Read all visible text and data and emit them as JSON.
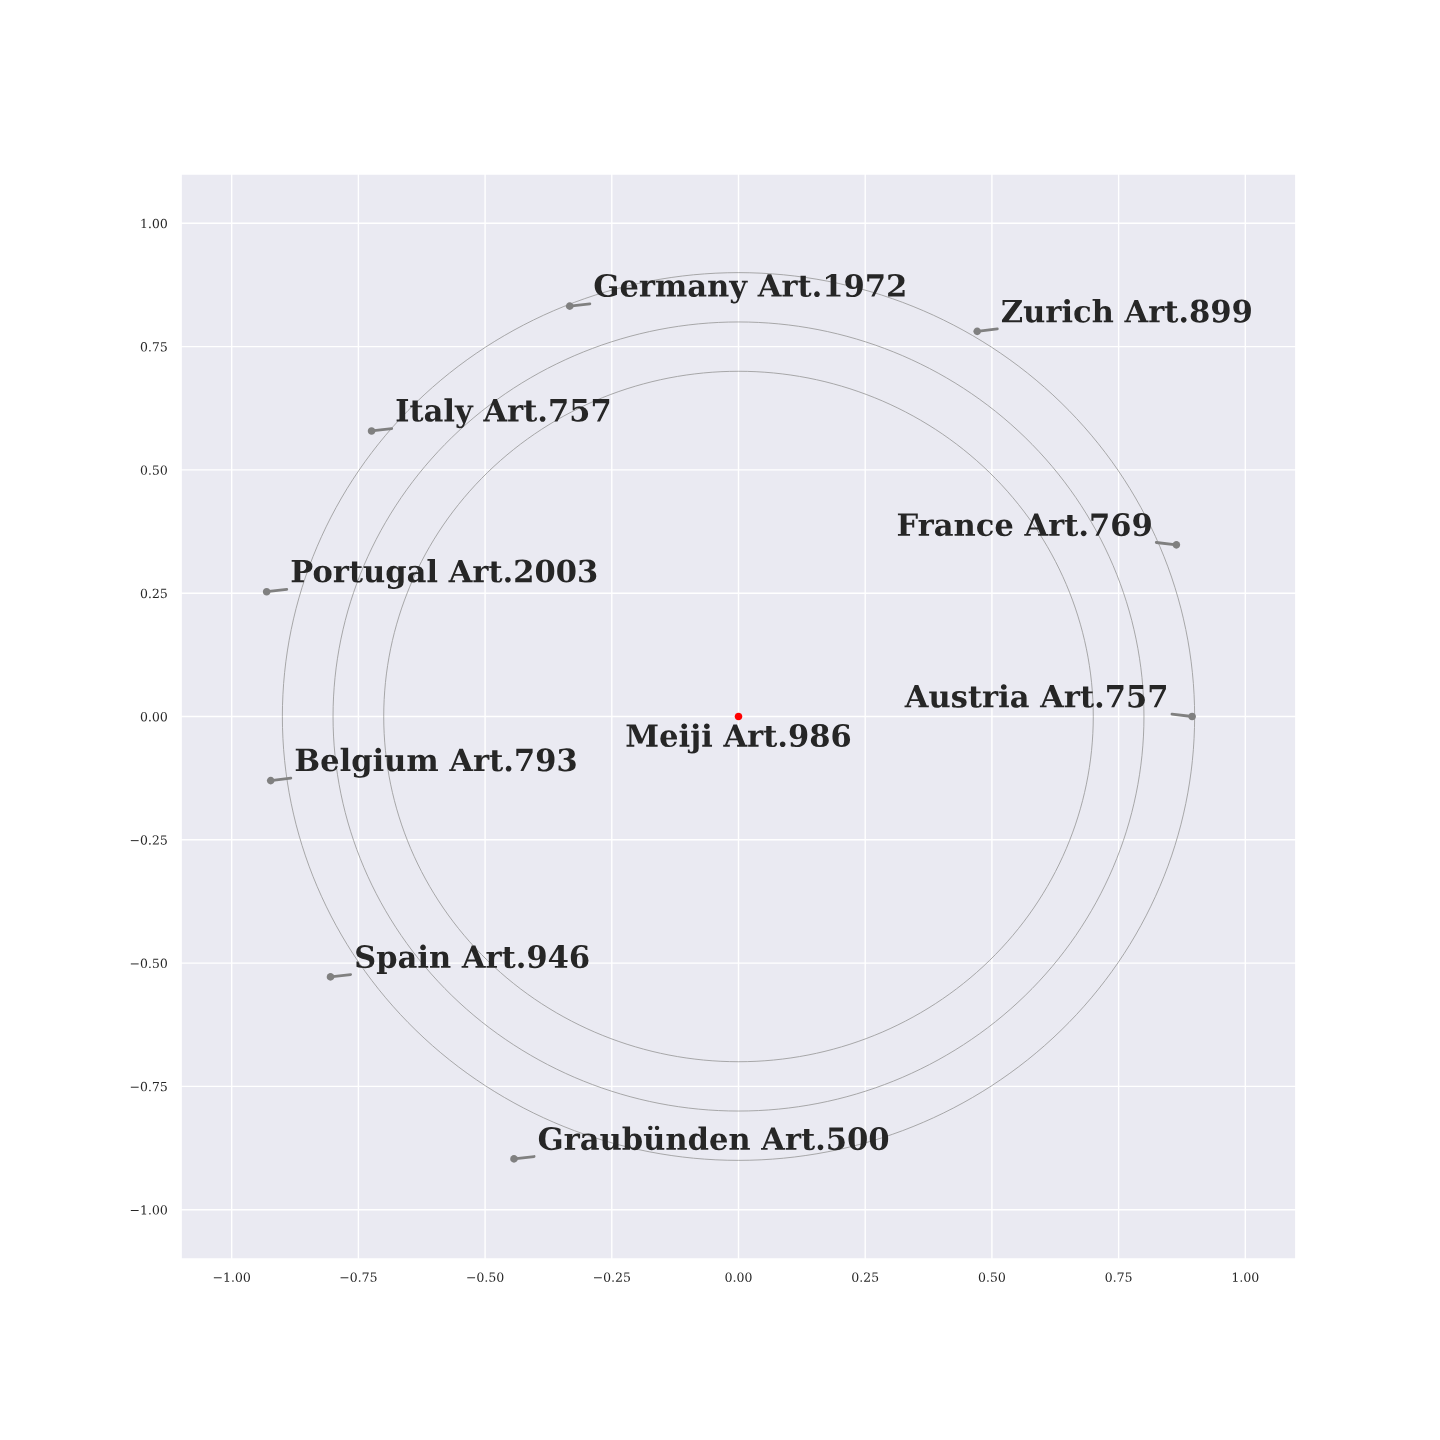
{
  "chart_data": {
    "type": "scatter",
    "xlim": [
      -1.1,
      1.1
    ],
    "ylim": [
      -1.1,
      1.1
    ],
    "xticks": [
      {
        "value": -1.0,
        "label": "−1.00"
      },
      {
        "value": -0.75,
        "label": "−0.75"
      },
      {
        "value": -0.5,
        "label": "−0.50"
      },
      {
        "value": -0.25,
        "label": "−0.25"
      },
      {
        "value": 0,
        "label": "0.00"
      },
      {
        "value": 0.25,
        "label": "0.25"
      },
      {
        "value": 0.5,
        "label": "0.50"
      },
      {
        "value": 0.75,
        "label": "0.75"
      },
      {
        "value": 1.0,
        "label": "1.00"
      }
    ],
    "yticks": [
      {
        "value": -1.0,
        "label": "−1.00"
      },
      {
        "value": -0.75,
        "label": "−0.75"
      },
      {
        "value": -0.5,
        "label": "−0.50"
      },
      {
        "value": -0.25,
        "label": "−0.25"
      },
      {
        "value": 0,
        "label": "0.00"
      },
      {
        "value": 0.25,
        "label": "0.25"
      },
      {
        "value": 0.5,
        "label": "0.50"
      },
      {
        "value": 0.75,
        "label": "0.75"
      },
      {
        "value": 1.0,
        "label": "1.00"
      }
    ],
    "grid": true,
    "legend": false,
    "series": [
      {
        "marker": "circle",
        "x": [
          -0.333,
          0.471,
          -0.724,
          0.864,
          -0.931,
          0.895,
          0,
          -0.923,
          -0.805,
          -0.443
        ],
        "values": [
          0.832,
          0.781,
          0.579,
          0.348,
          0.253,
          0,
          0,
          -0.13,
          -0.528,
          -0.897
        ],
        "colors": [
          "#808080",
          "#808080",
          "#808080",
          "#808080",
          "#808080",
          "#808080",
          "#ff0000",
          "#808080",
          "#808080",
          "#808080"
        ]
      }
    ],
    "annotations": [
      {
        "text": "Germany Art.1972",
        "x": -0.333,
        "y": 0.832
      },
      {
        "text": "Zurich Art.899",
        "x": 0.471,
        "y": 0.781
      },
      {
        "text": "Italy Art.757",
        "x": -0.724,
        "y": 0.579
      },
      {
        "text": "France Art.769",
        "x": 0.864,
        "y": 0.348
      },
      {
        "text": "Portugal Art.2003",
        "x": -0.931,
        "y": 0.253
      },
      {
        "text": "Austria Art.757",
        "x": 0.895,
        "y": 0
      },
      {
        "text": "Meiji Art.986",
        "x": 0,
        "y": 0
      },
      {
        "text": "Belgium Art.793",
        "x": -0.923,
        "y": -0.13
      },
      {
        "text": "Spain Art.946",
        "x": -0.805,
        "y": -0.528
      },
      {
        "text": "Graubünden Art.500",
        "x": -0.443,
        "y": -0.897
      }
    ]
  }
}
